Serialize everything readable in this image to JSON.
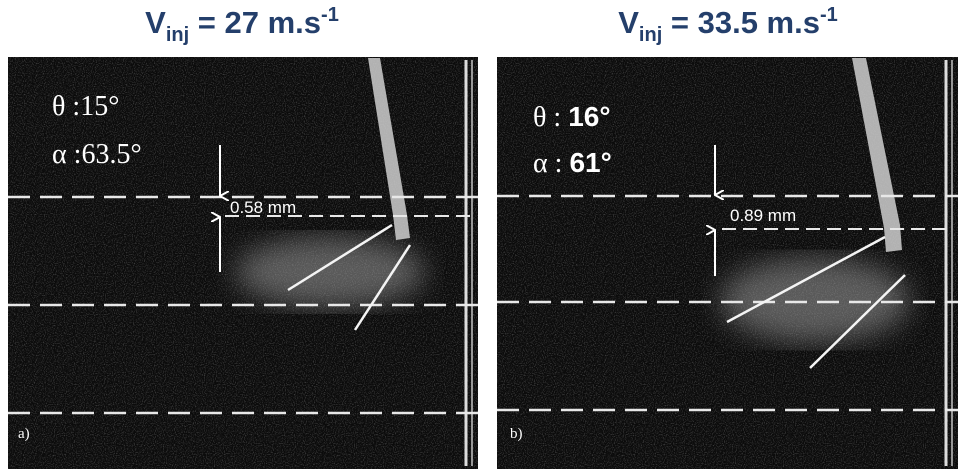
{
  "panels": [
    {
      "title": {
        "symbol": "V",
        "subscript": "inj",
        "text": " = 27 m.s",
        "superscript": "-1"
      },
      "theta": {
        "label": "θ :",
        "value": "15°"
      },
      "alpha": {
        "label": "α :",
        "value": "63.5°"
      },
      "gap": "0.58 mm",
      "letter": "a)"
    },
    {
      "title": {
        "symbol": "V",
        "subscript": "inj",
        "text": " = 33.5 m.s",
        "superscript": "-1"
      },
      "theta": {
        "label": "θ : ",
        "value": "16°"
      },
      "alpha": {
        "label": "α : ",
        "value": "61°"
      },
      "gap": "0.89 mm",
      "letter": "b)"
    }
  ]
}
